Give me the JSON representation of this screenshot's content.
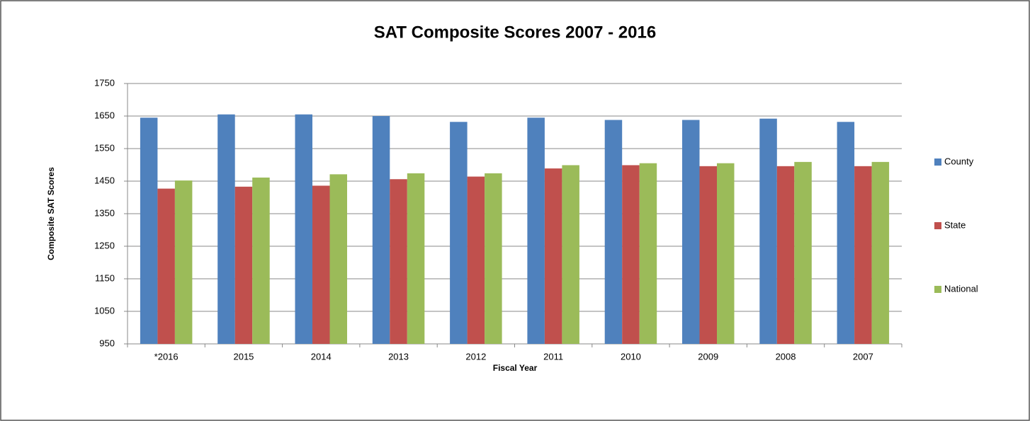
{
  "chart_data": {
    "type": "bar",
    "title": "SAT Composite Scores 2007 - 2016",
    "x_label": "Fiscal Year",
    "y_label": "Composite SAT Scores",
    "categories": [
      "*2016",
      "2015",
      "2014",
      "2013",
      "2012",
      "2011",
      "2010",
      "2009",
      "2008",
      "2007"
    ],
    "series": [
      {
        "name": "County",
        "color": "#4f81bd",
        "values": [
          1645,
          1655,
          1655,
          1650,
          1632,
          1645,
          1638,
          1638,
          1642,
          1632
        ]
      },
      {
        "name": "State",
        "color": "#c0504d",
        "values": [
          1427,
          1433,
          1436,
          1456,
          1464,
          1489,
          1499,
          1496,
          1496,
          1496
        ]
      },
      {
        "name": "National",
        "color": "#9bbb59",
        "values": [
          1452,
          1461,
          1471,
          1474,
          1474,
          1499,
          1505,
          1505,
          1509,
          1509
        ]
      }
    ],
    "ylim": [
      950,
      1750
    ],
    "yticks": [
      950,
      1050,
      1150,
      1250,
      1350,
      1450,
      1550,
      1650,
      1750
    ],
    "grid": true,
    "legend": "right"
  }
}
